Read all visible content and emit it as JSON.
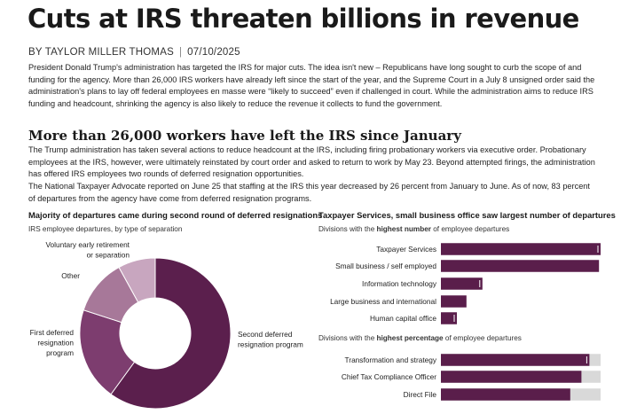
{
  "article": {
    "headline": "Cuts at IRS threaten billions in revenue",
    "byline_author": "BY TAYLOR MILLER THOMAS",
    "byline_separator": "|",
    "byline_date": "07/10/2025",
    "intro": "President Donald Trump's administration has targeted the IRS for major cuts. The idea isn't new – Republicans have long sought to curb the scope of and funding for the agency. More than 26,000 IRS workers have already left since the start of the year, and the Supreme Court in a July 8 unsigned order said the administration's plans to lay off federal employees en masse were “likely to succeed” even if challenged in court. While the administration aims to reduce IRS funding and headcount, shrinking the agency is also likely to reduce the revenue it collects to fund the government.",
    "section_heading": "More than 26,000 workers have left the IRS since January",
    "section_p1": "The Trump administration has taken several actions to reduce headcount at the IRS, including firing probationary workers via executive order. Probationary employees at the IRS, however, were ultimately reinstated by court order and asked to return to work by May 23. Beyond attempted firings, the administration has offered IRS employees two rounds of deferred resignation opportunities.",
    "section_p2": "The National Taxpayer Advocate reported on June 25 that staffing at the IRS this year decreased by 26 percent from January to June. As of now, 83 percent of departures from the agency have come from deferred resignation programs."
  },
  "donut": {
    "title": "Majority of departures came during second round of deferred resignations",
    "subtitle": "IRS employee departures, by type of separation"
  },
  "bars": {
    "title": "Taxpayer Services, small business office saw largest number of departures",
    "subtitle1_pre": "Divisions with the ",
    "subtitle1_bold": "highest number",
    "subtitle1_post": " of employee departures",
    "subtitle2_pre": "Divisions with the ",
    "subtitle2_bold": "highest percentage",
    "subtitle2_post": " of employee departures"
  },
  "colors": {
    "dark_purple": "#5b1f4d",
    "mid_purple": "#7d3d6f",
    "light_purple": "#a77899",
    "pale_purple": "#c8a6bf",
    "bar_purple": "#5a1e4b",
    "track_gray": "#d9d9d9",
    "marker_white": "#ffffff"
  },
  "chart_data": [
    {
      "type": "pie",
      "title": "Majority of departures came during second round of deferred resignations",
      "subtitle": "IRS employee departures, by type of separation",
      "categories": [
        "Second deferred resignation program",
        "First deferred resignation program",
        "Other",
        "Voluntary early retirement or separation"
      ],
      "display_labels": [
        [
          "Second deferred",
          "resignation program"
        ],
        [
          "First deferred",
          "resignation",
          "program"
        ],
        [
          "Other"
        ],
        [
          "Voluntary early retirement",
          "or separation"
        ]
      ],
      "values": [
        60,
        20,
        12,
        8
      ],
      "hole": 0.5
    },
    {
      "type": "bar",
      "title": "Taxpayer Services, small business office saw largest number of departures",
      "subtitle": "Divisions with the highest number of employee departures",
      "orientation": "horizontal",
      "categories": [
        "Taxpayer Services",
        "Small business / self employed",
        "Information technology",
        "Large business and international",
        "Human capital office"
      ],
      "values": [
        100,
        99,
        26,
        16,
        10
      ],
      "markers": [
        100,
        null,
        26,
        null,
        10
      ]
    },
    {
      "type": "bar",
      "title": "",
      "subtitle": "Divisions with the highest percentage of employee departures",
      "orientation": "horizontal",
      "categories": [
        "Transformation and strategy",
        "Chief Tax Compliance Officer",
        "Direct File"
      ],
      "values": [
        0.93,
        0.88,
        0.81
      ],
      "track": [
        1,
        1,
        1
      ],
      "markers": [
        0.93,
        null,
        null
      ]
    }
  ]
}
